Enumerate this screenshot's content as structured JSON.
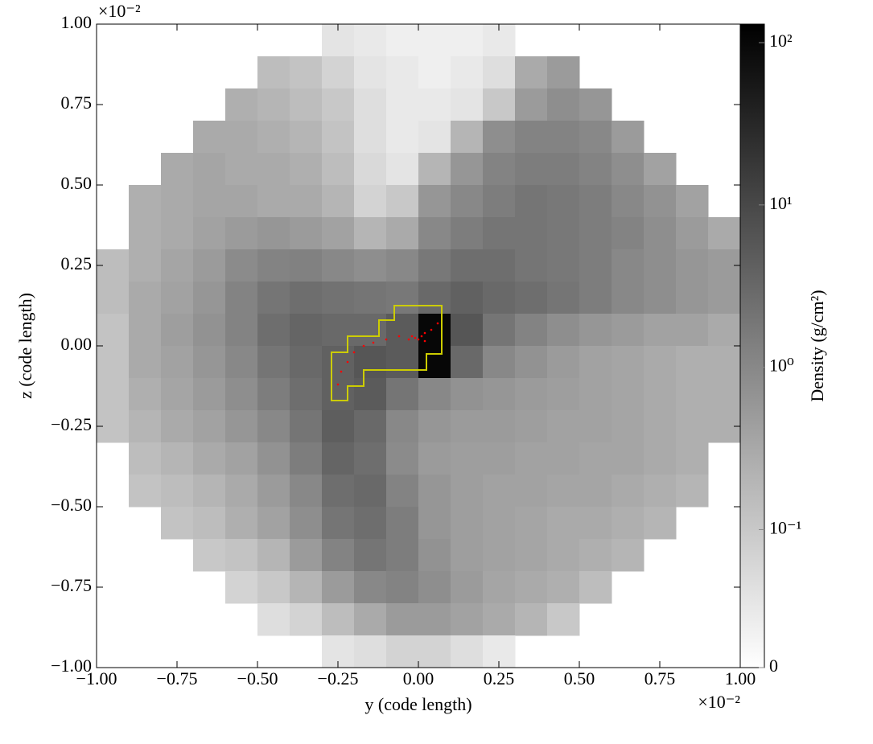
{
  "chart_data": {
    "type": "heatmap",
    "xlabel": "y  (code length)",
    "ylabel": "z  (code length)",
    "x_offset_label": "×10⁻²",
    "y_offset_label": "×10⁻²",
    "xlim": [
      -1,
      1
    ],
    "ylim": [
      -1,
      1
    ],
    "xticks": [
      {
        "value": -1,
        "label": "−1.00"
      },
      {
        "value": -0.75,
        "label": "−0.75"
      },
      {
        "value": -0.5,
        "label": "−0.50"
      },
      {
        "value": -0.25,
        "label": "−0.25"
      },
      {
        "value": 0,
        "label": "0.00"
      },
      {
        "value": 0.25,
        "label": "0.25"
      },
      {
        "value": 0.5,
        "label": "0.50"
      },
      {
        "value": 0.75,
        "label": "0.75"
      },
      {
        "value": 1,
        "label": "1.00"
      }
    ],
    "yticks": [
      {
        "value": -1,
        "label": "−1.00"
      },
      {
        "value": -0.75,
        "label": "−0.75"
      },
      {
        "value": -0.5,
        "label": "−0.50"
      },
      {
        "value": -0.25,
        "label": "−0.25"
      },
      {
        "value": 0,
        "label": "0.00"
      },
      {
        "value": 0.25,
        "label": "0.25"
      },
      {
        "value": 0.5,
        "label": "0.50"
      },
      {
        "value": 0.75,
        "label": "0.75"
      },
      {
        "value": 1,
        "label": "1.00"
      }
    ],
    "colormap": "gray_r",
    "color_scale": "symlog",
    "linthresh": 0.1,
    "clim": [
      0,
      130
    ],
    "colorbar_label": "Density  (g/cm²)",
    "colorbar_ticks": [
      0,
      {
        "value": 0.1,
        "label": "10⁻¹"
      },
      {
        "value": 1,
        "label": "10⁰"
      },
      {
        "value": 10,
        "label": "10¹"
      },
      {
        "value": 100,
        "label": "10²"
      }
    ],
    "values": [
      [
        null,
        null,
        null,
        null,
        null,
        null,
        null,
        0.05,
        0.04,
        0.03,
        0.03,
        0.03,
        0.04,
        null,
        null,
        null,
        null,
        null,
        null,
        null
      ],
      [
        null,
        null,
        null,
        null,
        null,
        0.15,
        0.12,
        0.08,
        0.05,
        0.04,
        0.03,
        0.04,
        0.06,
        0.3,
        0.5,
        null,
        null,
        null,
        null,
        null
      ],
      [
        null,
        null,
        null,
        null,
        0.25,
        0.2,
        0.15,
        0.1,
        0.06,
        0.04,
        0.04,
        0.05,
        0.1,
        0.5,
        0.8,
        0.6,
        null,
        null,
        null,
        null
      ],
      [
        null,
        null,
        null,
        0.3,
        0.3,
        0.25,
        0.2,
        0.12,
        0.06,
        0.04,
        0.05,
        0.2,
        0.8,
        1.2,
        1.2,
        1.0,
        0.5,
        null,
        null,
        null
      ],
      [
        null,
        null,
        0.3,
        0.35,
        0.3,
        0.3,
        0.25,
        0.15,
        0.07,
        0.05,
        0.2,
        0.6,
        1.2,
        1.5,
        1.5,
        1.2,
        0.8,
        0.4,
        null,
        null
      ],
      [
        null,
        0.25,
        0.3,
        0.35,
        0.35,
        0.3,
        0.3,
        0.2,
        0.08,
        0.1,
        0.6,
        1.0,
        1.5,
        2.0,
        1.8,
        1.5,
        1.0,
        0.7,
        0.4,
        null
      ],
      [
        null,
        0.25,
        0.3,
        0.4,
        0.5,
        0.6,
        0.5,
        0.4,
        0.2,
        0.3,
        1.0,
        1.5,
        2.0,
        2.0,
        1.8,
        1.5,
        1.2,
        0.8,
        0.5,
        0.3
      ],
      [
        0.15,
        0.25,
        0.35,
        0.5,
        0.9,
        1.2,
        1.3,
        1.0,
        0.8,
        1.0,
        1.8,
        2.5,
        2.5,
        2.0,
        1.8,
        1.5,
        1.0,
        0.8,
        0.6,
        0.5
      ],
      [
        0.15,
        0.3,
        0.4,
        0.6,
        1.2,
        2.0,
        2.5,
        2.2,
        2.0,
        1.8,
        3.0,
        4.0,
        3.0,
        2.5,
        2.0,
        1.5,
        1.0,
        0.8,
        0.6,
        0.5
      ],
      [
        0.12,
        0.3,
        0.45,
        0.7,
        1.2,
        2.5,
        3.5,
        3.0,
        3.0,
        5.0,
        100,
        6.0,
        2.0,
        1.2,
        0.8,
        0.6,
        0.5,
        0.4,
        0.4,
        0.3
      ],
      [
        0.12,
        0.3,
        0.4,
        0.6,
        1.0,
        2.0,
        3.0,
        4.0,
        6.0,
        5.0,
        100,
        3.0,
        1.0,
        0.7,
        0.5,
        0.4,
        0.35,
        0.3,
        0.25,
        0.25
      ],
      [
        0.12,
        0.25,
        0.35,
        0.5,
        0.8,
        1.5,
        2.5,
        4.0,
        5.0,
        2.0,
        1.0,
        0.7,
        0.6,
        0.5,
        0.45,
        0.4,
        0.35,
        0.3,
        0.25,
        0.25
      ],
      [
        0.12,
        0.2,
        0.3,
        0.4,
        0.6,
        1.0,
        2.0,
        4.5,
        3.0,
        1.0,
        0.6,
        0.5,
        0.5,
        0.45,
        0.4,
        0.4,
        0.35,
        0.3,
        0.25,
        0.25
      ],
      [
        null,
        0.15,
        0.2,
        0.3,
        0.4,
        0.7,
        1.5,
        3.5,
        2.5,
        0.9,
        0.5,
        0.45,
        0.45,
        0.4,
        0.4,
        0.35,
        0.35,
        0.3,
        0.25,
        null
      ],
      [
        null,
        0.12,
        0.15,
        0.2,
        0.3,
        0.5,
        1.0,
        2.5,
        3.0,
        1.2,
        0.6,
        0.45,
        0.4,
        0.4,
        0.35,
        0.35,
        0.3,
        0.25,
        0.2,
        null
      ],
      [
        null,
        null,
        0.12,
        0.15,
        0.25,
        0.4,
        0.8,
        2.0,
        2.5,
        1.5,
        0.6,
        0.45,
        0.4,
        0.35,
        0.3,
        0.3,
        0.25,
        0.2,
        null,
        null
      ],
      [
        null,
        null,
        null,
        0.1,
        0.12,
        0.2,
        0.5,
        1.2,
        2.0,
        1.5,
        0.7,
        0.45,
        0.4,
        0.35,
        0.3,
        0.25,
        0.2,
        null,
        null,
        null
      ],
      [
        null,
        null,
        null,
        null,
        0.08,
        0.1,
        0.2,
        0.5,
        1.0,
        1.2,
        0.8,
        0.5,
        0.35,
        0.3,
        0.25,
        0.15,
        null,
        null,
        null,
        null
      ],
      [
        null,
        null,
        null,
        null,
        null,
        0.06,
        0.08,
        0.15,
        0.3,
        0.5,
        0.5,
        0.4,
        0.3,
        0.2,
        0.1,
        null,
        null,
        null,
        null,
        null
      ],
      [
        null,
        null,
        null,
        null,
        null,
        null,
        null,
        0.05,
        0.06,
        0.08,
        0.08,
        0.06,
        0.04,
        null,
        null,
        null,
        null,
        null,
        null,
        null
      ]
    ],
    "particles": {
      "color": "#ff0000",
      "x": [
        -0.25,
        -0.24,
        -0.22,
        -0.2,
        -0.17,
        -0.14,
        -0.1,
        -0.06,
        -0.03,
        -0.01,
        0.0,
        0.01,
        0.02,
        0.04,
        0.06,
        0.02,
        -0.02
      ],
      "y": [
        -0.12,
        -0.08,
        -0.05,
        -0.02,
        0.0,
        0.01,
        0.02,
        0.03,
        0.02,
        0.025,
        0.02,
        0.03,
        0.04,
        0.05,
        0.07,
        0.015,
        0.03
      ]
    }
  }
}
